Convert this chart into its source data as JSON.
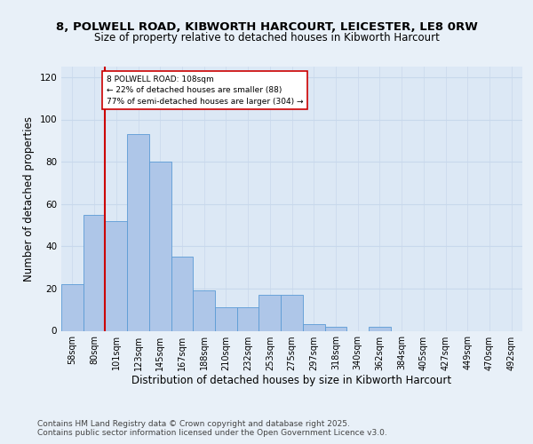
{
  "title_line1": "8, POLWELL ROAD, KIBWORTH HARCOURT, LEICESTER, LE8 0RW",
  "title_line2": "Size of property relative to detached houses in Kibworth Harcourt",
  "xlabel": "Distribution of detached houses by size in Kibworth Harcourt",
  "ylabel": "Number of detached properties",
  "categories": [
    "58sqm",
    "80sqm",
    "101sqm",
    "123sqm",
    "145sqm",
    "167sqm",
    "188sqm",
    "210sqm",
    "232sqm",
    "253sqm",
    "275sqm",
    "297sqm",
    "318sqm",
    "340sqm",
    "362sqm",
    "384sqm",
    "405sqm",
    "427sqm",
    "449sqm",
    "470sqm",
    "492sqm"
  ],
  "values": [
    22,
    55,
    52,
    93,
    80,
    35,
    19,
    11,
    11,
    17,
    17,
    3,
    2,
    0,
    2,
    0,
    0,
    0,
    0,
    0,
    0
  ],
  "bar_color": "#aec6e8",
  "bar_edge_color": "#5b9bd5",
  "highlight_index": 2,
  "highlight_line_color": "#cc0000",
  "annotation_line1": "8 POLWELL ROAD: 108sqm",
  "annotation_line2": "← 22% of detached houses are smaller (88)",
  "annotation_line3": "77% of semi-detached houses are larger (304) →",
  "annotation_box_color": "#ffffff",
  "annotation_box_edge": "#cc0000",
  "background_color": "#e8f0f8",
  "plot_background_color": "#dce8f5",
  "grid_color": "#c8d8ec",
  "ylim": [
    0,
    125
  ],
  "yticks": [
    0,
    20,
    40,
    60,
    80,
    100,
    120
  ],
  "footer_text": "Contains HM Land Registry data © Crown copyright and database right 2025.\nContains public sector information licensed under the Open Government Licence v3.0.",
  "title_fontsize": 9.5,
  "subtitle_fontsize": 8.5,
  "axis_label_fontsize": 8.5,
  "tick_fontsize": 7,
  "footer_fontsize": 6.5
}
